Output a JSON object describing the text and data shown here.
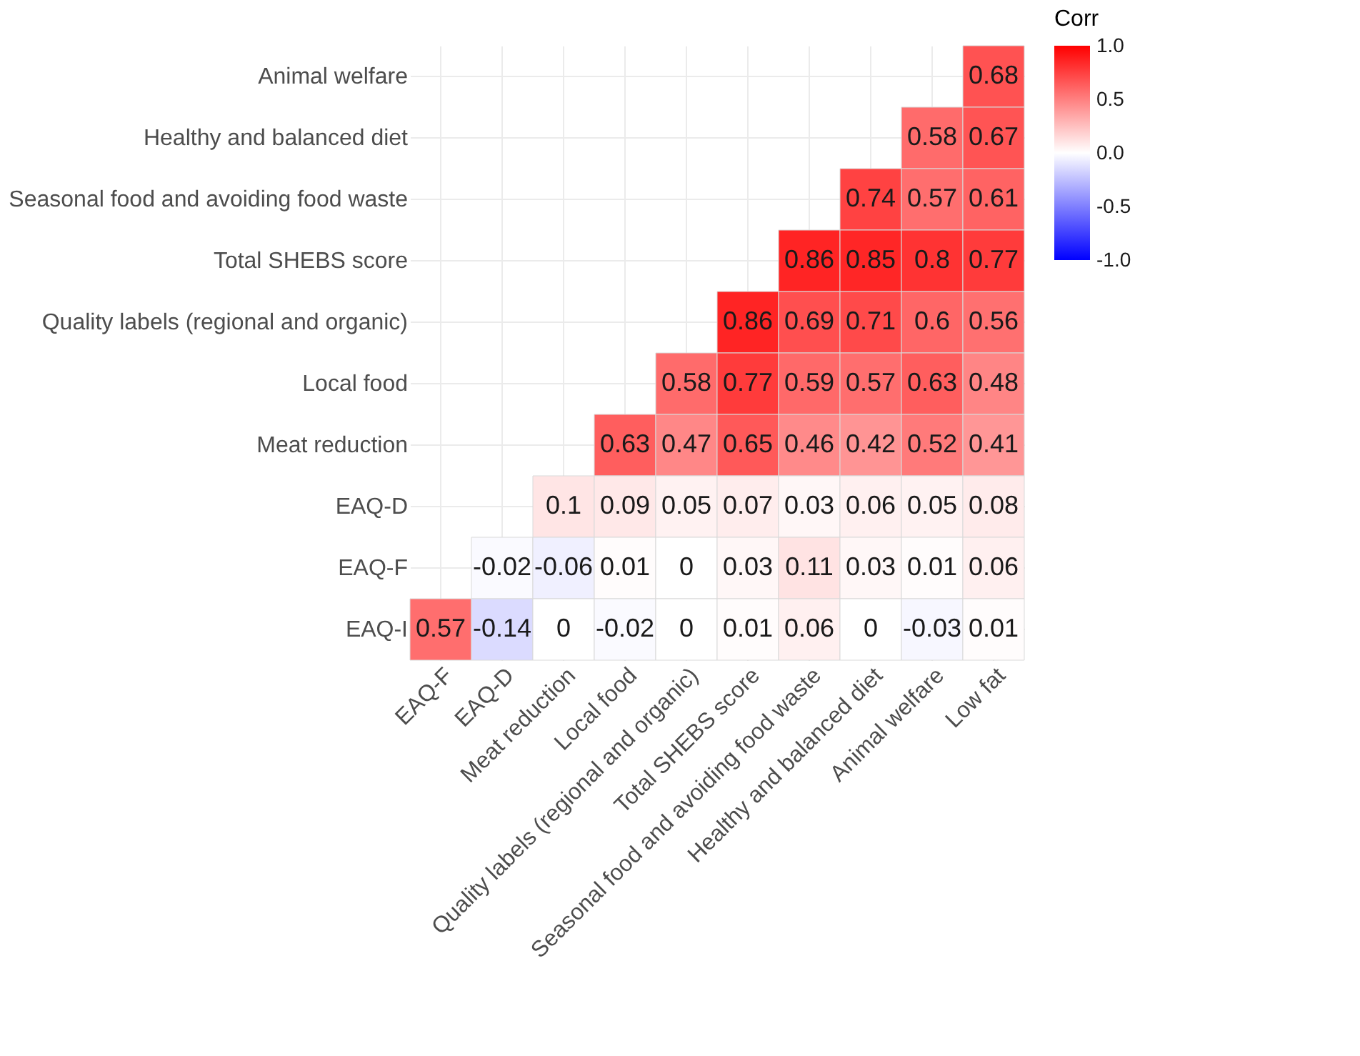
{
  "chart_data": {
    "type": "heatmap",
    "legend_title": "Corr",
    "categories": [
      "EAQ-F",
      "EAQ-D",
      "Meat reduction",
      "Local food",
      "Quality labels (regional and organic)",
      "Total SHEBS score",
      "Seasonal food and avoiding food waste",
      "Healthy and balanced diet",
      "Animal welfare",
      "Low fat"
    ],
    "y_categories": [
      "Animal welfare",
      "Healthy and balanced diet",
      "Seasonal food and avoiding food waste",
      "Total SHEBS score",
      "Quality labels (regional and organic)",
      "Local food",
      "Meat reduction",
      "EAQ-D",
      "EAQ-F",
      "EAQ-I"
    ],
    "cells": [
      [
        null,
        null,
        null,
        null,
        null,
        null,
        null,
        null,
        null,
        0.68
      ],
      [
        null,
        null,
        null,
        null,
        null,
        null,
        null,
        null,
        0.58,
        0.67
      ],
      [
        null,
        null,
        null,
        null,
        null,
        null,
        null,
        0.74,
        0.57,
        0.61
      ],
      [
        null,
        null,
        null,
        null,
        null,
        null,
        0.86,
        0.85,
        0.8,
        0.77
      ],
      [
        null,
        null,
        null,
        null,
        null,
        0.86,
        0.69,
        0.71,
        0.6,
        0.56
      ],
      [
        null,
        null,
        null,
        null,
        0.58,
        0.77,
        0.59,
        0.57,
        0.63,
        0.48
      ],
      [
        null,
        null,
        null,
        0.63,
        0.47,
        0.65,
        0.46,
        0.42,
        0.52,
        0.41
      ],
      [
        null,
        null,
        0.1,
        0.09,
        0.05,
        0.07,
        0.03,
        0.06,
        0.05,
        0.08
      ],
      [
        null,
        -0.02,
        -0.06,
        0.01,
        0,
        0.03,
        0.11,
        0.03,
        0.01,
        0.06
      ],
      [
        0.57,
        -0.14,
        0,
        -0.02,
        0,
        0.01,
        0.06,
        0,
        -0.03,
        0.01
      ]
    ],
    "clim": [
      -1,
      1
    ],
    "cticks": [
      {
        "value": 1,
        "label": "1.0"
      },
      {
        "value": 0.5,
        "label": "0.5"
      },
      {
        "value": 0,
        "label": "0.0"
      },
      {
        "value": -0.5,
        "label": "-0.5"
      },
      {
        "value": -1,
        "label": "-1.0"
      }
    ],
    "colors": [
      "#0000ff",
      "#ffffff",
      "#ff0000"
    ],
    "data_labels": true,
    "grid": true
  }
}
